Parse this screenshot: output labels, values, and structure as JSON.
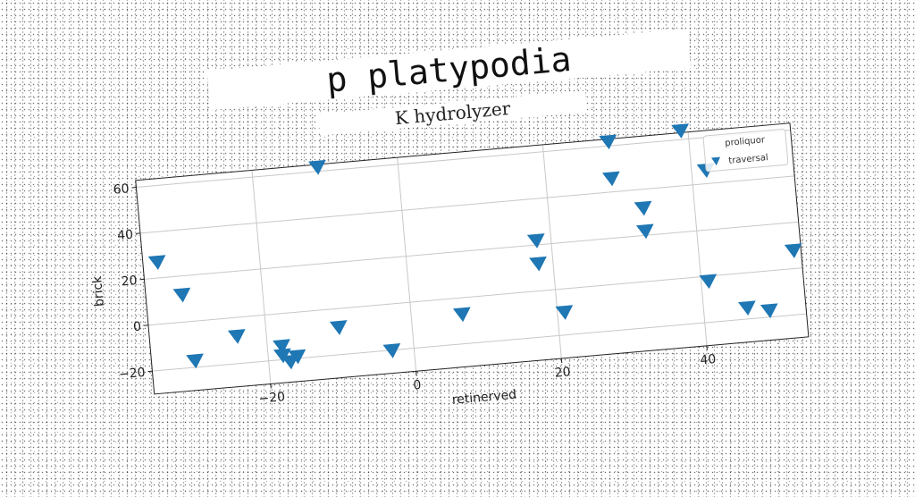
{
  "chart_data": {
    "type": "scatter",
    "title": "p platypodia",
    "subtitle": "K hydrolyzer",
    "xlabel": "retinerved",
    "ylabel": "brick",
    "xlim": [
      -36,
      54
    ],
    "ylim": [
      -30,
      63
    ],
    "xticks": [
      -20,
      0,
      20,
      40
    ],
    "xtick_labels": [
      "−20",
      "0",
      "20",
      "40"
    ],
    "yticks": [
      -20,
      0,
      20,
      40,
      60
    ],
    "yticks_labels_note": "",
    "ytick_labels": [
      "−20",
      "0",
      "20",
      "40",
      "60"
    ],
    "grid": true,
    "marker": "triangle-down",
    "legend": {
      "title": "proliquor",
      "placement": "upper right"
    },
    "series": [
      {
        "name": "traversal",
        "color": "#1f77b4",
        "points": [
          [
            -34,
            27
          ],
          [
            -31,
            12
          ],
          [
            -30,
            -17
          ],
          [
            -24,
            -8
          ],
          [
            -18,
            -14
          ],
          [
            -18,
            -18
          ],
          [
            -17,
            -21
          ],
          [
            -16,
            -19
          ],
          [
            -10,
            -8
          ],
          [
            -11,
            62
          ],
          [
            -3,
            -20
          ],
          [
            7,
            -7
          ],
          [
            18,
            12
          ],
          [
            18,
            22
          ],
          [
            21,
            -10
          ],
          [
            29,
            62
          ],
          [
            29,
            46
          ],
          [
            33,
            32
          ],
          [
            33,
            22
          ],
          [
            39,
            64
          ],
          [
            42,
            46
          ],
          [
            41,
            -2
          ],
          [
            46,
            -15
          ],
          [
            49,
            -17
          ],
          [
            53,
            8
          ]
        ]
      }
    ]
  }
}
